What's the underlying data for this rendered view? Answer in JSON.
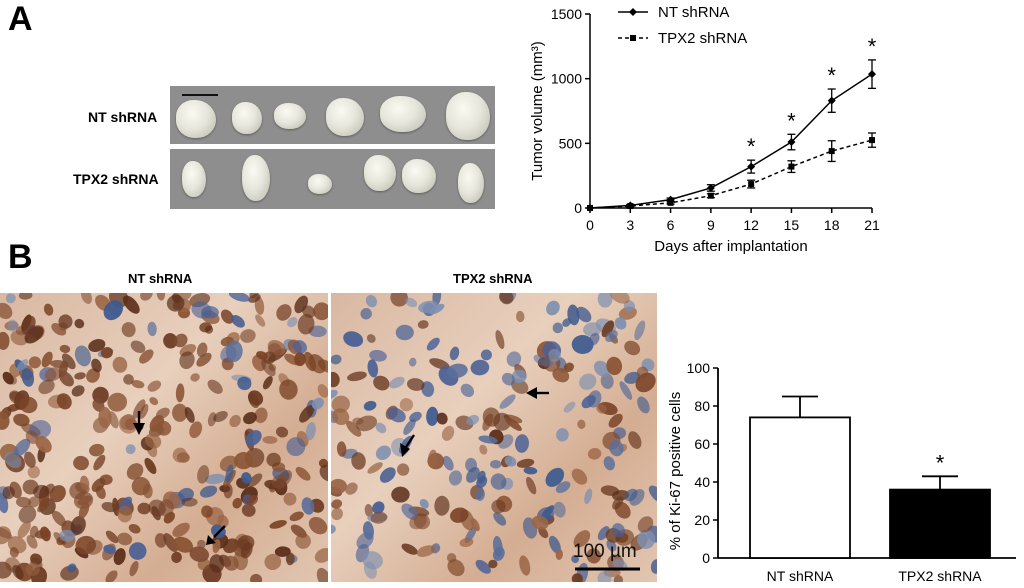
{
  "panelA": {
    "letter": "A",
    "row_labels": [
      "NT shRNA",
      "TPX2 shRNA"
    ]
  },
  "panelB": {
    "letter": "B",
    "image_labels": [
      "NT shRNA",
      "TPX2 shRNA"
    ],
    "scale_label": "100 µm"
  },
  "chart_data": [
    {
      "type": "line",
      "xlabel": "Days after implantation",
      "ylabel": "Tumor volume (mm³)",
      "x": [
        0,
        3,
        6,
        9,
        12,
        15,
        18,
        21
      ],
      "xticks": [
        "0",
        "3",
        "6",
        "9",
        "12",
        "15",
        "18",
        "21"
      ],
      "yticks": [
        "0",
        "500",
        "1000",
        "1500"
      ],
      "xlim": [
        0,
        21
      ],
      "ylim": [
        0,
        1500
      ],
      "legend_position": "top-left",
      "series": [
        {
          "name": "NT shRNA",
          "style": "solid",
          "marker": "diamond",
          "values": [
            0,
            20,
            65,
            155,
            320,
            510,
            830,
            1035
          ],
          "errors": [
            0,
            8,
            12,
            25,
            50,
            60,
            90,
            110
          ]
        },
        {
          "name": "TPX2 shRNA",
          "style": "dashed",
          "marker": "square",
          "values": [
            0,
            15,
            40,
            95,
            185,
            320,
            440,
            525
          ],
          "errors": [
            0,
            6,
            10,
            15,
            30,
            45,
            80,
            55
          ]
        }
      ],
      "significance_marks": [
        {
          "x": 12,
          "label": "*"
        },
        {
          "x": 15,
          "label": "*"
        },
        {
          "x": 18,
          "label": "*"
        },
        {
          "x": 21,
          "label": "*"
        }
      ]
    },
    {
      "type": "bar",
      "ylabel": "% of Ki-67 positive cells",
      "categories": [
        "NT shRNA",
        "TPX2 shRNA"
      ],
      "values": [
        74,
        36
      ],
      "errors": [
        11,
        7
      ],
      "colors": [
        "#ffffff",
        "#000000"
      ],
      "yticks": [
        "0",
        "20",
        "40",
        "60",
        "80",
        "100"
      ],
      "ylim": [
        0,
        100
      ],
      "significance_marks": [
        {
          "category": "TPX2 shRNA",
          "label": "*"
        }
      ]
    }
  ]
}
